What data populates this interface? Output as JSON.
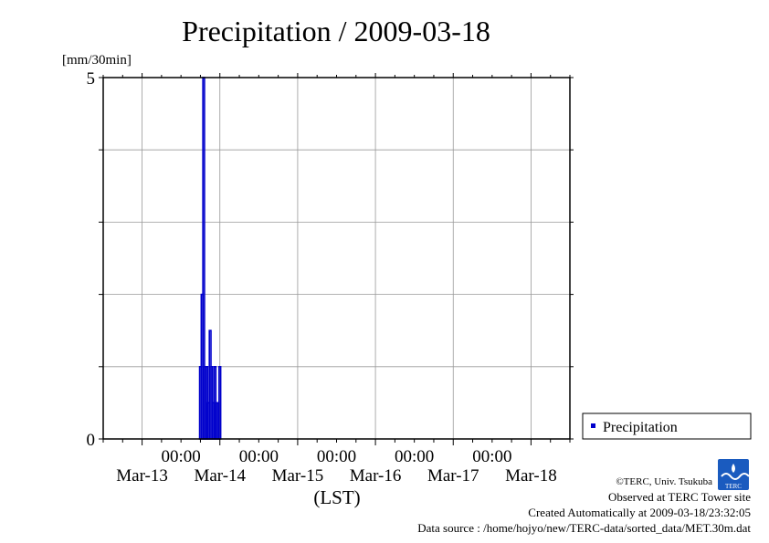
{
  "chart_data": {
    "type": "bar",
    "title": "Precipitation / 2009-03-18",
    "ylabel": "[mm/30min]",
    "xlabel": "(LST)",
    "ylim": [
      0,
      5
    ],
    "yticks": [
      {
        "value": 0,
        "label": "0"
      },
      {
        "value": 5,
        "label": "5"
      }
    ],
    "x_range_days": [
      -0.5,
      5.5
    ],
    "x_ticks": [
      {
        "day": 0,
        "date": "Mar-13",
        "time": ""
      },
      {
        "day": 1,
        "date": "Mar-14",
        "time": "00:00"
      },
      {
        "day": 2,
        "date": "Mar-15",
        "time": "00:00"
      },
      {
        "day": 3,
        "date": "Mar-16",
        "time": "00:00"
      },
      {
        "day": 4,
        "date": "Mar-17",
        "time": "00:00"
      },
      {
        "day": 5,
        "date": "Mar-18",
        "time": "00:00"
      }
    ],
    "time_labels": [
      {
        "day": 0.5,
        "text": "00:00"
      },
      {
        "day": 1.5,
        "text": "00:00"
      },
      {
        "day": 2.5,
        "text": "00:00"
      },
      {
        "day": 3.5,
        "text": "00:00"
      },
      {
        "day": 4.5,
        "text": "00:00"
      }
    ],
    "grid": true,
    "series": [
      {
        "name": "Precipitation",
        "color": "#0000cc",
        "points": [
          {
            "day": 0.75,
            "value": 1
          },
          {
            "day": 0.771,
            "value": 2
          },
          {
            "day": 0.792,
            "value": 5
          },
          {
            "day": 0.813,
            "value": 1
          },
          {
            "day": 0.833,
            "value": 1
          },
          {
            "day": 0.854,
            "value": 0.5
          },
          {
            "day": 0.875,
            "value": 1.5
          },
          {
            "day": 0.896,
            "value": 1
          },
          {
            "day": 0.917,
            "value": 0.5
          },
          {
            "day": 0.938,
            "value": 1
          },
          {
            "day": 0.958,
            "value": 0.5
          },
          {
            "day": 0.979,
            "value": 0.5
          },
          {
            "day": 1.0,
            "value": 1
          }
        ]
      }
    ],
    "legend": {
      "position": "bottom-right",
      "label": "Precipitation"
    }
  },
  "footer": {
    "copyright": "©TERC, Univ. Tsukuba",
    "observed": "Observed at TERC Tower site",
    "created": "Created Automatically at 2009-03-18/23:32:05",
    "source": "Data source : /home/hojyo/new/TERC-data/sorted_data/MET.30m.dat"
  },
  "logo": {
    "text": "TERC",
    "color": "#1a5bbf"
  }
}
